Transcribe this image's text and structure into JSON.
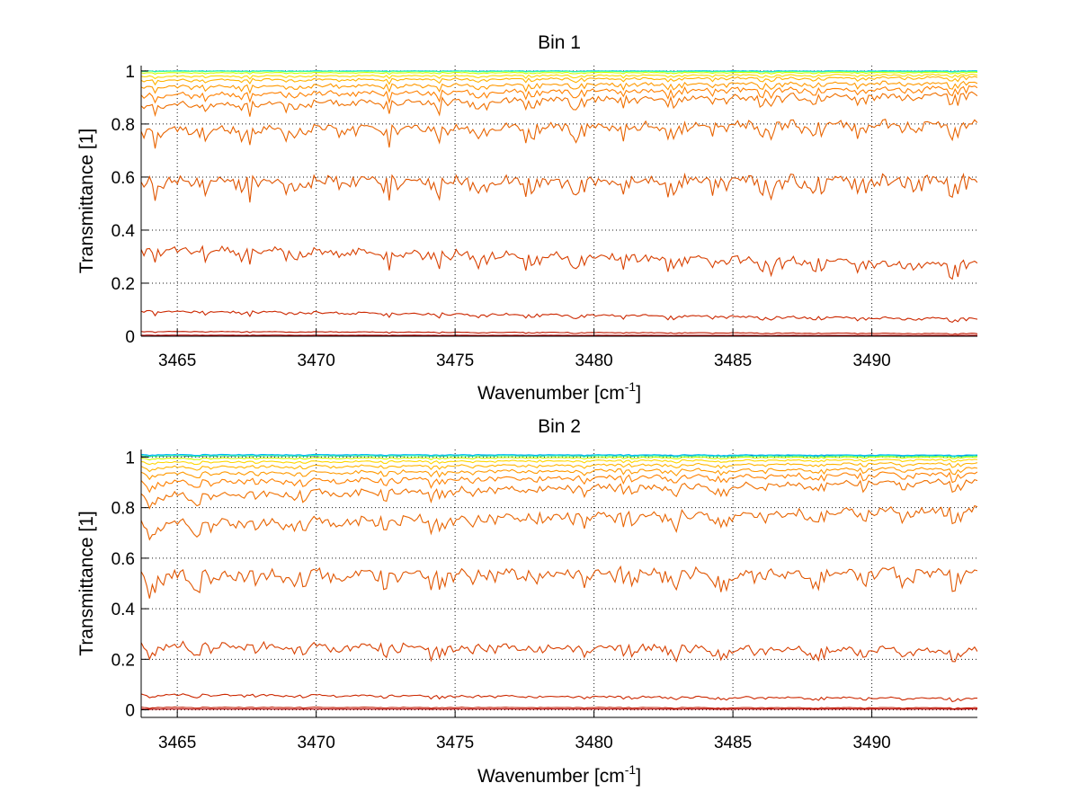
{
  "chart_data": [
    {
      "type": "line",
      "title": "Bin 1",
      "xlabel": "Wavenumber [cm",
      "xlabel_sup": "-1",
      "xlabel_end": "]",
      "ylabel": "Transmittance [1]",
      "xlim": [
        3463.7,
        3493.8
      ],
      "ylim": [
        0,
        1.02
      ],
      "x_ticks": [
        3465,
        3470,
        3475,
        3480,
        3485,
        3490
      ],
      "x_tick_labels": [
        "3465",
        "3470",
        "3475",
        "3480",
        "3485",
        "3490"
      ],
      "y_ticks": [
        0,
        0.2,
        0.4,
        0.6,
        0.8,
        1
      ],
      "y_tick_labels": [
        "0",
        "0.2",
        "0.4",
        "0.6",
        "0.8",
        "1"
      ],
      "grid": true,
      "series": [
        {
          "color": "#00b4ff",
          "level_start": 1.0,
          "level_end": 1.0,
          "dip_depth": 0.002
        },
        {
          "color": "#33ff99",
          "level_start": 0.999,
          "level_end": 0.998,
          "dip_depth": 0.002
        },
        {
          "color": "#ccff00",
          "level_start": 0.993,
          "level_end": 0.994,
          "dip_depth": 0.004
        },
        {
          "color": "#ffd700",
          "level_start": 0.98,
          "level_end": 0.985,
          "dip_depth": 0.008
        },
        {
          "color": "#ffb300",
          "level_start": 0.965,
          "level_end": 0.975,
          "dip_depth": 0.012
        },
        {
          "color": "#ff9900",
          "level_start": 0.94,
          "level_end": 0.955,
          "dip_depth": 0.018
        },
        {
          "color": "#ff8000",
          "level_start": 0.91,
          "level_end": 0.935,
          "dip_depth": 0.025
        },
        {
          "color": "#f07000",
          "level_start": 0.87,
          "level_end": 0.91,
          "dip_depth": 0.035
        },
        {
          "color": "#e86400",
          "level_start": 0.775,
          "level_end": 0.8,
          "dip_depth": 0.05
        },
        {
          "color": "#e05500",
          "level_start": 0.585,
          "level_end": 0.585,
          "dip_depth": 0.06
        },
        {
          "color": "#d84000",
          "level_start": 0.33,
          "level_end": 0.27,
          "dip_depth": 0.045
        },
        {
          "color": "#cc2800",
          "level_start": 0.095,
          "level_end": 0.065,
          "dip_depth": 0.012
        },
        {
          "color": "#c01800",
          "level_start": 0.018,
          "level_end": 0.01,
          "dip_depth": 0.003
        },
        {
          "color": "#b00000",
          "level_start": 0.004,
          "level_end": 0.003,
          "dip_depth": 0.001
        }
      ]
    },
    {
      "type": "line",
      "title": "Bin 2",
      "xlabel": "Wavenumber [cm",
      "xlabel_sup": "-1",
      "xlabel_end": "]",
      "ylabel": "Transmittance [1]",
      "xlim": [
        3463.7,
        3493.8
      ],
      "ylim": [
        -0.03,
        1.03
      ],
      "x_ticks": [
        3465,
        3470,
        3475,
        3480,
        3485,
        3490
      ],
      "x_tick_labels": [
        "3465",
        "3470",
        "3475",
        "3480",
        "3485",
        "3490"
      ],
      "y_ticks": [
        0,
        0.2,
        0.4,
        0.6,
        0.8,
        1
      ],
      "y_tick_labels": [
        "0",
        "0.2",
        "0.4",
        "0.6",
        "0.8",
        "1"
      ],
      "grid": true,
      "series": [
        {
          "color": "#000080",
          "level_start": 1.005,
          "level_end": 1.005,
          "dip_depth": 0.002
        },
        {
          "color": "#00b4ff",
          "level_start": 1.01,
          "level_end": 1.008,
          "dip_depth": 0.003
        },
        {
          "color": "#33ff99",
          "level_start": 1.006,
          "level_end": 1.004,
          "dip_depth": 0.003
        },
        {
          "color": "#ccff00",
          "level_start": 0.995,
          "level_end": 1.0,
          "dip_depth": 0.005
        },
        {
          "color": "#ffd700",
          "level_start": 0.98,
          "level_end": 0.99,
          "dip_depth": 0.008
        },
        {
          "color": "#ffb300",
          "level_start": 0.96,
          "level_end": 0.975,
          "dip_depth": 0.012
        },
        {
          "color": "#ff9900",
          "level_start": 0.935,
          "level_end": 0.955,
          "dip_depth": 0.018
        },
        {
          "color": "#ff8000",
          "level_start": 0.9,
          "level_end": 0.935,
          "dip_depth": 0.025
        },
        {
          "color": "#f07000",
          "level_start": 0.845,
          "level_end": 0.905,
          "dip_depth": 0.035
        },
        {
          "color": "#e86400",
          "level_start": 0.735,
          "level_end": 0.79,
          "dip_depth": 0.05
        },
        {
          "color": "#e05500",
          "level_start": 0.53,
          "level_end": 0.545,
          "dip_depth": 0.06
        },
        {
          "color": "#d84000",
          "level_start": 0.255,
          "level_end": 0.235,
          "dip_depth": 0.04
        },
        {
          "color": "#cc2800",
          "level_start": 0.06,
          "level_end": 0.045,
          "dip_depth": 0.01
        },
        {
          "color": "#c01800",
          "level_start": 0.01,
          "level_end": 0.008,
          "dip_depth": 0.003
        },
        {
          "color": "#b00000",
          "level_start": 0.003,
          "level_end": 0.003,
          "dip_depth": 0.001
        }
      ]
    }
  ]
}
